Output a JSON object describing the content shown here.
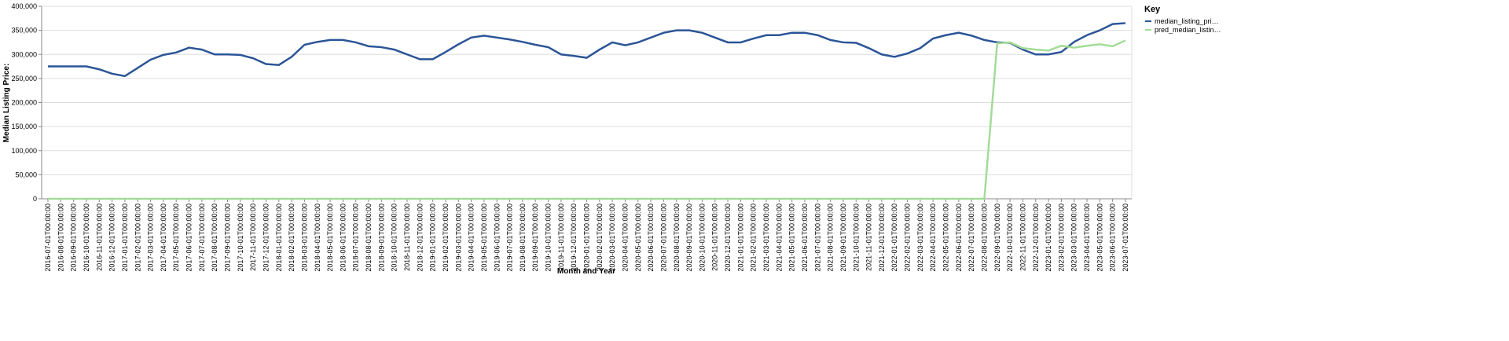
{
  "chart_data": {
    "type": "line",
    "x_label": "Month and Year",
    "y_label": "Median Listing Price:",
    "legend_title": "Key",
    "legend_position": "right",
    "grid": true,
    "categories": [
      "2016-07-01T00:00:00",
      "2016-08-01T00:00:00",
      "2016-09-01T00:00:00",
      "2016-10-01T00:00:00",
      "2016-11-01T00:00:00",
      "2016-12-01T00:00:00",
      "2017-01-01T00:00:00",
      "2017-02-01T00:00:00",
      "2017-03-01T00:00:00",
      "2017-04-01T00:00:00",
      "2017-05-01T00:00:00",
      "2017-06-01T00:00:00",
      "2017-07-01T00:00:00",
      "2017-08-01T00:00:00",
      "2017-09-01T00:00:00",
      "2017-10-01T00:00:00",
      "2017-11-01T00:00:00",
      "2017-12-01T00:00:00",
      "2018-01-01T00:00:00",
      "2018-02-01T00:00:00",
      "2018-03-01T00:00:00",
      "2018-04-01T00:00:00",
      "2018-05-01T00:00:00",
      "2018-06-01T00:00:00",
      "2018-07-01T00:00:00",
      "2018-08-01T00:00:00",
      "2018-09-01T00:00:00",
      "2018-10-01T00:00:00",
      "2018-11-01T00:00:00",
      "2018-12-01T00:00:00",
      "2019-01-01T00:00:00",
      "2019-02-01T00:00:00",
      "2019-03-01T00:00:00",
      "2019-04-01T00:00:00",
      "2019-05-01T00:00:00",
      "2019-06-01T00:00:00",
      "2019-07-01T00:00:00",
      "2019-08-01T00:00:00",
      "2019-09-01T00:00:00",
      "2019-10-01T00:00:00",
      "2019-11-01T00:00:00",
      "2019-12-01T00:00:00",
      "2020-01-01T00:00:00",
      "2020-02-01T00:00:00",
      "2020-03-01T00:00:00",
      "2020-04-01T00:00:00",
      "2020-05-01T00:00:00",
      "2020-06-01T00:00:00",
      "2020-07-01T00:00:00",
      "2020-08-01T00:00:00",
      "2020-09-01T00:00:00",
      "2020-10-01T00:00:00",
      "2020-11-01T00:00:00",
      "2020-12-01T00:00:00",
      "2021-01-01T00:00:00",
      "2021-02-01T00:00:00",
      "2021-03-01T00:00:00",
      "2021-04-01T00:00:00",
      "2021-05-01T00:00:00",
      "2021-06-01T00:00:00",
      "2021-07-01T00:00:00",
      "2021-08-01T00:00:00",
      "2021-09-01T00:00:00",
      "2021-10-01T00:00:00",
      "2021-11-01T00:00:00",
      "2021-12-01T00:00:00",
      "2022-01-01T00:00:00",
      "2022-02-01T00:00:00",
      "2022-03-01T00:00:00",
      "2022-04-01T00:00:00",
      "2022-05-01T00:00:00",
      "2022-06-01T00:00:00",
      "2022-07-01T00:00:00",
      "2022-08-01T00:00:00",
      "2022-09-01T00:00:00",
      "2022-10-01T00:00:00",
      "2022-11-01T00:00:00",
      "2022-12-01T00:00:00",
      "2023-01-01T00:00:00",
      "2023-02-01T00:00:00",
      "2023-03-01T00:00:00",
      "2023-04-01T00:00:00",
      "2023-05-01T00:00:00",
      "2023-06-01T00:00:00",
      "2023-07-01T00:00:00"
    ],
    "series": [
      {
        "name": "median_listing_pri…",
        "color": "#2b5597",
        "values": [
          275000,
          275000,
          275000,
          275000,
          269000,
          259900,
          255000,
          272000,
          289000,
          299000,
          304000,
          314000,
          310000,
          300000,
          300000,
          299000,
          292000,
          280000,
          278000,
          295000,
          320000,
          326000,
          330000,
          330000,
          325000,
          317000,
          315000,
          310000,
          300000,
          290000,
          290000,
          305000,
          321000,
          335000,
          339000,
          335000,
          331000,
          326000,
          320000,
          315000,
          300000,
          297000,
          293000,
          310000,
          325000,
          319000,
          325000,
          335000,
          345000,
          350000,
          350000,
          345000,
          335000,
          325000,
          325000,
          333000,
          340000,
          340000,
          345000,
          345000,
          340000,
          330000,
          325000,
          324000,
          313000,
          300000,
          295000,
          302000,
          313000,
          333000,
          340000,
          345000,
          339000,
          330000,
          325000,
          324000,
          310000,
          300000,
          300000,
          305000,
          326000,
          340000,
          350000,
          363000,
          365000
        ]
      },
      {
        "name": "pred_median_listin…",
        "color": "#a3dc98",
        "values": [
          0,
          0,
          0,
          0,
          0,
          0,
          0,
          0,
          0,
          0,
          0,
          0,
          0,
          0,
          0,
          0,
          0,
          0,
          0,
          0,
          0,
          0,
          0,
          0,
          0,
          0,
          0,
          0,
          0,
          0,
          0,
          0,
          0,
          0,
          0,
          0,
          0,
          0,
          0,
          0,
          0,
          0,
          0,
          0,
          0,
          0,
          0,
          0,
          0,
          0,
          0,
          0,
          0,
          0,
          0,
          0,
          0,
          0,
          0,
          0,
          0,
          0,
          0,
          0,
          0,
          0,
          0,
          0,
          0,
          0,
          0,
          0,
          0,
          0,
          323000,
          325000,
          313000,
          310000,
          308000,
          318000,
          314000,
          318000,
          321000,
          317000,
          329000
        ]
      }
    ],
    "ylim": [
      0,
      400000
    ],
    "yticks": [
      0,
      {
        "value": 50000,
        "label": "50,000"
      },
      {
        "value": 100000,
        "label": "100,000"
      },
      {
        "value": 150000,
        "label": "150,000"
      },
      {
        "value": 200000,
        "label": "200,000"
      },
      {
        "value": 250000,
        "label": "250,000"
      },
      {
        "value": 300000,
        "label": "300,000"
      },
      {
        "value": 350000,
        "label": "350,000"
      },
      {
        "value": 400000,
        "label": "400,000"
      }
    ]
  }
}
